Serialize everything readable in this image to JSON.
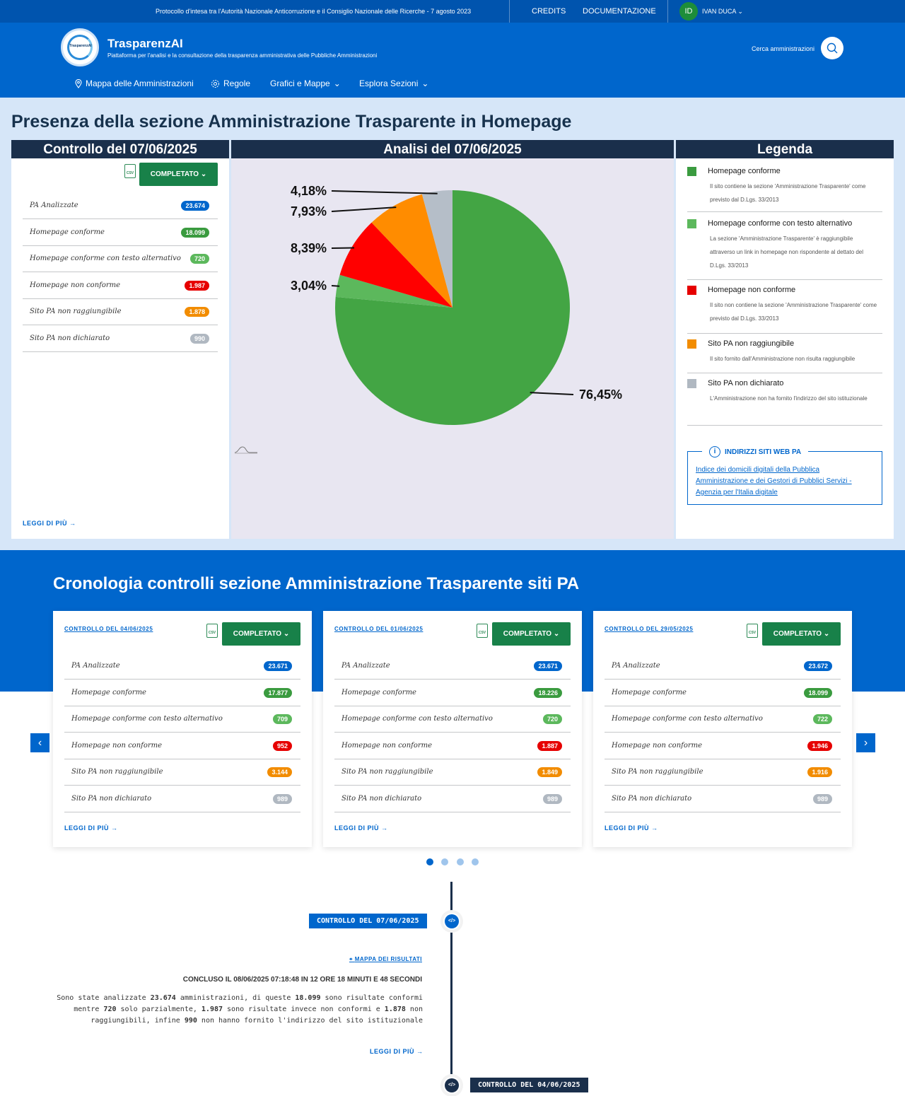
{
  "topbar": {
    "protocol": "Protocollo d'intesa tra l'Autorità Nazionale Anticorruzione e il Consiglio Nazionale delle Ricerche - 7 agosto 2023",
    "credits": "CREDITS",
    "docs": "DOCUMENTAZIONE",
    "user_initials": "ID",
    "user_name": "IVAN DUCA"
  },
  "header": {
    "logo_text": "TrasparenzAI",
    "brand": "TrasparenzAI",
    "tagline": "Piattaforma per l'analisi e la consultazione della trasparenza amministrativa delle Pubbliche Amministrazioni",
    "search_label": "Cerca amministrazioni"
  },
  "nav": {
    "items": [
      {
        "label": "Mappa delle Amministrazioni",
        "icon": "map-pin-icon"
      },
      {
        "label": "Regole",
        "icon": "gear-icon"
      },
      {
        "label": "Grafici e Mappe",
        "icon": "chevron-down-icon"
      },
      {
        "label": "Esplora Sezioni",
        "icon": "chevron-down-icon"
      }
    ]
  },
  "main": {
    "title": "Presenza della sezione Amministrazione Trasparente in Homepage",
    "control_panel": {
      "title": "Controllo del 07/06/2025",
      "csv": "CSV",
      "status": "COMPLETATO",
      "rows": [
        {
          "label": "PA Analizzate",
          "value": "23.674",
          "color": "#0066cc"
        },
        {
          "label": "Homepage conforme",
          "value": "18.099",
          "color": "#3a9b3f"
        },
        {
          "label": "Homepage conforme con testo alternativo",
          "value": "720",
          "color": "#5cb85c"
        },
        {
          "label": "Homepage non conforme",
          "value": "1.987",
          "color": "#e60000"
        },
        {
          "label": "Sito PA non raggiungibile",
          "value": "1.878",
          "color": "#f28c00"
        },
        {
          "label": "Sito PA non dichiarato",
          "value": "990",
          "color": "#b0b8c1"
        }
      ],
      "more": "LEGGI DI PIÙ"
    },
    "chart_panel": {
      "title": "Analisi del 07/06/2025"
    },
    "legend_panel": {
      "title": "Legenda",
      "items": [
        {
          "label": "Homepage conforme",
          "desc": "Il sito contiene la sezione 'Amministrazione Trasparente' come previsto dal D.Lgs. 33/2013",
          "color": "#3a9b3f"
        },
        {
          "label": "Homepage conforme con testo alternativo",
          "desc": "La sezione 'Amministrazione Trasparente' è raggiungibile attraverso un link in homepage non rispondente al dettato del D.Lgs. 33/2013",
          "color": "#5cb85c"
        },
        {
          "label": "Homepage non conforme",
          "desc": "Il sito non contiene la sezione 'Amministrazione Trasparente' come previsto dal D.Lgs. 33/2013",
          "color": "#e60000"
        },
        {
          "label": "Sito PA non raggiungibile",
          "desc": "Il sito fornito dall'Amministrazione non risulta raggiungibile",
          "color": "#f28c00"
        },
        {
          "label": "Sito PA non dichiarato",
          "desc": "L'Amministrazione non ha fornito l'indirizzo del sito istituzionale",
          "color": "#b0b8c1"
        }
      ],
      "info_title": "INDIRIZZI SITI WEB PA",
      "info_link": "Indice dei domicili digitali della Pubblica Amministrazione e dei Gestori di Pubblici Servizi - Agenzia per l'Italia digitale"
    }
  },
  "chart_data": {
    "type": "pie",
    "title": "",
    "categories": [
      "Homepage conforme",
      "Homepage conforme con testo alternativo",
      "Homepage non conforme",
      "Sito PA non raggiungibile",
      "Sito PA non dichiarato"
    ],
    "values": [
      76.45,
      3.04,
      8.39,
      7.93,
      4.18
    ],
    "labels": [
      "76,45%",
      "3,04%",
      "8,39%",
      "7,93%",
      "4,18%"
    ],
    "colors": [
      "#43a544",
      "#5cb85c",
      "#ff0000",
      "#ff8c00",
      "#b5bec8"
    ]
  },
  "history": {
    "title": "Cronologia controlli sezione Amministrazione Trasparente siti PA",
    "cards": [
      {
        "title": "CONTROLLO DEL 04/06/2025",
        "csv": "CSV",
        "status": "COMPLETATO",
        "values": [
          "23.671",
          "17.877",
          "709",
          "952",
          "3.144",
          "989"
        ],
        "more": "LEGGI DI PIÙ"
      },
      {
        "title": "CONTROLLO DEL 01/06/2025",
        "csv": "CSV",
        "status": "COMPLETATO",
        "values": [
          "23.671",
          "18.226",
          "720",
          "1.887",
          "1.849",
          "989"
        ],
        "more": "LEGGI DI PIÙ"
      },
      {
        "title": "CONTROLLO DEL 29/05/2025",
        "csv": "CSV",
        "status": "COMPLETATO",
        "values": [
          "23.672",
          "18.099",
          "722",
          "1.946",
          "1.916",
          "989"
        ],
        "more": "LEGGI DI PIÙ"
      }
    ],
    "row_labels": [
      "PA Analizzate",
      "Homepage conforme",
      "Homepage conforme con testo alternativo",
      "Homepage non conforme",
      "Sito PA non raggiungibile",
      "Sito PA non dichiarato"
    ],
    "row_colors": [
      "#0066cc",
      "#3a9b3f",
      "#5cb85c",
      "#e60000",
      "#f28c00",
      "#b0b8c1"
    ],
    "pager_pages": 4,
    "pager_active": 1
  },
  "timeline": {
    "entry1": {
      "label": "CONTROLLO DEL 07/06/2025",
      "map_link": "MAPPA DEI RISULTATI",
      "concluded": "CONCLUSO IL 08/06/2025 07:18:48 IN 12 ORE 18 MINUTI E 48 SECONDI",
      "summary_parts": [
        "Sono state analizzate ",
        "23.674",
        " amministrazioni, di queste ",
        "18.099",
        " sono risultate conformi mentre ",
        "720",
        " solo parzialmente, ",
        "1.987",
        " sono risultate invece non conformi e ",
        "1.878",
        " non raggiungibili, infine ",
        "990",
        " non hanno fornito l'indirizzo del sito istituzionale"
      ],
      "more": "LEGGI DI PIÙ"
    },
    "entry2": {
      "label": "CONTROLLO DEL 04/06/2025"
    }
  }
}
